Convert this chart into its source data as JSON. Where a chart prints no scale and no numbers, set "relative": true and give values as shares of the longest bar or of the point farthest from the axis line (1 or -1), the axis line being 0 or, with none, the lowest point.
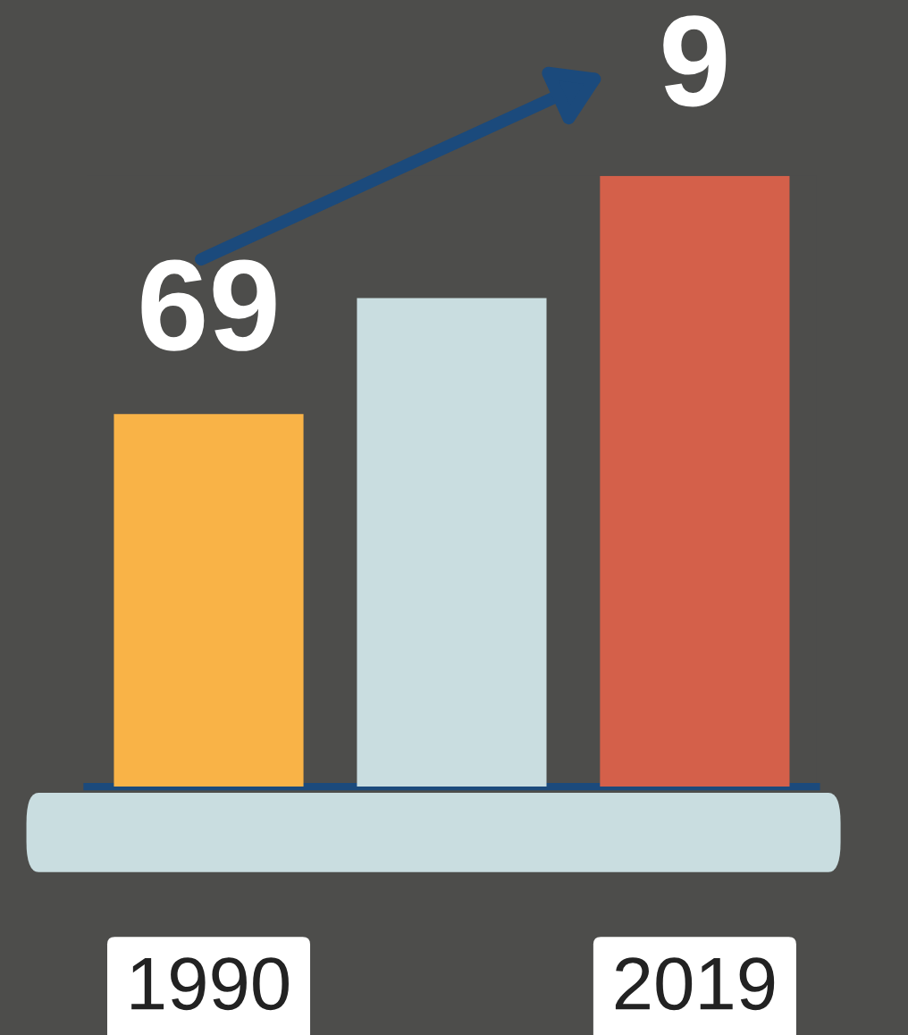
{
  "chart_data": {
    "type": "bar",
    "relative": true,
    "categories": [
      "1990",
      null,
      "2019"
    ],
    "values": [
      0.61,
      0.8,
      1
    ],
    "colors": [
      "#f9b347",
      "#c9dde0",
      "#d4604a"
    ],
    "annotations": [
      "69",
      "9"
    ],
    "grid": false,
    "legend": false
  }
}
